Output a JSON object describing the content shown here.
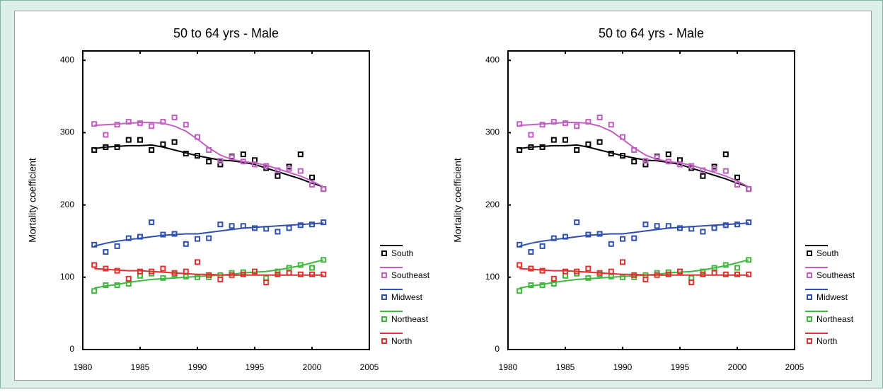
{
  "chart_data": [
    {
      "type": "line",
      "title": "50 to 64 yrs - Male",
      "y_label": "Mortality coefficient",
      "x": [
        1981,
        1982,
        1983,
        1984,
        1985,
        1986,
        1987,
        1988,
        1989,
        1990,
        1991,
        1992,
        1993,
        1994,
        1995,
        1996,
        1997,
        1998,
        1999,
        2000,
        2001
      ],
      "xlim": [
        1980,
        2005
      ],
      "xticks": [
        1980,
        1985,
        1990,
        1995,
        2000,
        2005
      ],
      "ylim": [
        0,
        413
      ],
      "yticks": [
        0,
        100,
        200,
        300,
        400
      ],
      "series": [
        {
          "name": "South",
          "color": "#000000",
          "values": [
            276,
            280,
            280,
            290,
            290,
            276,
            284,
            287,
            271,
            268,
            260,
            256,
            267,
            270,
            262,
            251,
            240,
            253,
            270,
            238,
            222
          ],
          "fit": [
            278,
            280,
            281,
            282,
            282,
            283,
            280,
            276,
            272,
            268,
            265,
            262,
            261,
            259,
            256,
            251,
            246,
            241,
            236,
            230,
            225
          ]
        },
        {
          "name": "Southeast",
          "color": "#c060c0",
          "values": [
            312,
            297,
            311,
            315,
            313,
            309,
            315,
            321,
            311,
            294,
            276,
            261,
            266,
            260,
            256,
            254,
            248,
            250,
            247,
            228,
            222
          ],
          "fit": [
            310,
            311,
            312,
            313,
            314,
            314,
            313,
            309,
            302,
            291,
            279,
            269,
            263,
            260,
            258,
            255,
            250,
            245,
            240,
            233,
            225
          ]
        },
        {
          "name": "Midwest",
          "color": "#3050b0",
          "values": [
            145,
            135,
            143,
            154,
            156,
            176,
            159,
            160,
            146,
            153,
            154,
            173,
            171,
            171,
            168,
            167,
            163,
            168,
            172,
            173,
            176
          ],
          "fit": [
            143,
            147,
            150,
            152,
            154,
            156,
            158,
            159,
            160,
            160,
            162,
            164,
            166,
            168,
            169,
            170,
            171,
            172,
            173,
            174,
            175
          ]
        },
        {
          "name": "Northeast",
          "color": "#40b840",
          "values": [
            81,
            89,
            89,
            91,
            102,
            105,
            99,
            104,
            101,
            100,
            100,
            103,
            106,
            107,
            108,
            99,
            108,
            113,
            117,
            113,
            124
          ],
          "fit": [
            85,
            88,
            90,
            93,
            95,
            97,
            98,
            99,
            100,
            101,
            102,
            103,
            104,
            106,
            107,
            108,
            110,
            113,
            116,
            120,
            124
          ]
        },
        {
          "name": "North",
          "color": "#e03030",
          "values": [
            117,
            112,
            109,
            98,
            108,
            108,
            112,
            106,
            108,
            121,
            103,
            97,
            103,
            104,
            108,
            93,
            104,
            106,
            104,
            104,
            104
          ],
          "fit": [
            112,
            111,
            110,
            109,
            109,
            108,
            107,
            106,
            105,
            104,
            104,
            103,
            103,
            103,
            103,
            103,
            103,
            103,
            103,
            103,
            103
          ]
        }
      ]
    },
    {
      "type": "line",
      "title": "50 to 64 yrs - Male",
      "y_label": "Mortality coefficient",
      "x": [
        1981,
        1982,
        1983,
        1984,
        1985,
        1986,
        1987,
        1988,
        1989,
        1990,
        1991,
        1992,
        1993,
        1994,
        1995,
        1996,
        1997,
        1998,
        1999,
        2000,
        2001
      ],
      "xlim": [
        1980,
        2005
      ],
      "xticks": [
        1980,
        1985,
        1990,
        1995,
        2000,
        2005
      ],
      "ylim": [
        0,
        413
      ],
      "yticks": [
        0,
        100,
        200,
        300,
        400
      ],
      "series": [
        {
          "name": "South",
          "color": "#000000",
          "values": [
            276,
            280,
            280,
            290,
            290,
            276,
            284,
            287,
            271,
            268,
            260,
            256,
            267,
            270,
            262,
            251,
            240,
            253,
            270,
            238,
            222
          ],
          "fit": [
            278,
            280,
            281,
            282,
            282,
            283,
            280,
            276,
            272,
            268,
            265,
            262,
            261,
            259,
            256,
            251,
            246,
            241,
            236,
            230,
            225
          ]
        },
        {
          "name": "Southeast",
          "color": "#c060c0",
          "values": [
            312,
            297,
            311,
            315,
            313,
            309,
            315,
            321,
            311,
            294,
            276,
            261,
            266,
            260,
            256,
            254,
            248,
            250,
            247,
            228,
            222
          ],
          "fit": [
            310,
            311,
            312,
            313,
            314,
            314,
            313,
            309,
            302,
            291,
            279,
            269,
            263,
            260,
            258,
            255,
            250,
            245,
            240,
            233,
            225
          ]
        },
        {
          "name": "Midwest",
          "color": "#3050b0",
          "values": [
            145,
            135,
            143,
            154,
            156,
            176,
            159,
            160,
            146,
            153,
            154,
            173,
            171,
            171,
            168,
            167,
            163,
            168,
            172,
            173,
            176
          ],
          "fit": [
            143,
            147,
            150,
            152,
            154,
            156,
            158,
            159,
            160,
            160,
            162,
            164,
            166,
            168,
            169,
            170,
            171,
            172,
            173,
            174,
            175
          ]
        },
        {
          "name": "Northeast",
          "color": "#40b840",
          "values": [
            81,
            89,
            89,
            91,
            102,
            105,
            99,
            104,
            101,
            100,
            100,
            103,
            106,
            107,
            108,
            99,
            108,
            113,
            117,
            113,
            124
          ],
          "fit": [
            85,
            88,
            90,
            93,
            95,
            97,
            98,
            99,
            100,
            101,
            102,
            103,
            104,
            106,
            107,
            108,
            110,
            113,
            116,
            120,
            124
          ]
        },
        {
          "name": "North",
          "color": "#e03030",
          "values": [
            117,
            112,
            109,
            98,
            108,
            108,
            112,
            106,
            108,
            121,
            103,
            97,
            103,
            104,
            108,
            93,
            104,
            106,
            104,
            104,
            104
          ],
          "fit": [
            112,
            111,
            110,
            109,
            109,
            108,
            107,
            106,
            105,
            104,
            104,
            103,
            103,
            103,
            103,
            103,
            103,
            103,
            103,
            103,
            103
          ]
        }
      ]
    }
  ]
}
